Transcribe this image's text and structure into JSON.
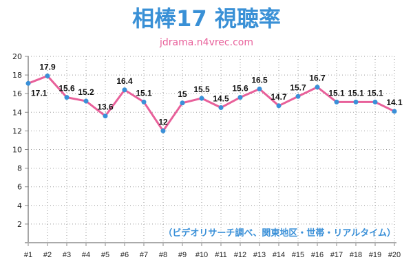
{
  "chart_data": {
    "type": "line",
    "title": "相棒17 視聴率",
    "subtitle": "jdrama.n4vrec.com",
    "annotation": "（ビデオリサーチ調べ、関東地区・世帯・リアルタイム）",
    "categories": [
      "#1",
      "#2",
      "#3",
      "#4",
      "#5",
      "#6",
      "#7",
      "#8",
      "#9",
      "#10",
      "#11",
      "#12",
      "#13",
      "#14",
      "#15",
      "#16",
      "#17",
      "#18",
      "#19",
      "#20"
    ],
    "values": [
      17.1,
      17.9,
      15.6,
      15.2,
      13.6,
      16.4,
      15.1,
      12,
      15,
      15.5,
      14.5,
      15.6,
      16.5,
      14.7,
      15.7,
      16.7,
      15.1,
      15.1,
      15.1,
      14.1
    ],
    "value_labels": [
      "17.1",
      "17.9",
      "15.6",
      "15.2",
      "13.6",
      "16.4",
      "15.1",
      "12",
      "15",
      "15.5",
      "14.5",
      "15.6",
      "16.5",
      "14.7",
      "15.7",
      "16.7",
      "15.1",
      "15.1",
      "15.1",
      "14.1"
    ],
    "yticks": [
      "2",
      "4",
      "6",
      "8",
      "10",
      "12",
      "14",
      "16",
      "18",
      "20"
    ],
    "ylim": [
      0,
      20
    ],
    "grid": true,
    "colors": {
      "line": "#e8609a",
      "marker": "#3a90d8",
      "title": "#3990d6"
    }
  }
}
